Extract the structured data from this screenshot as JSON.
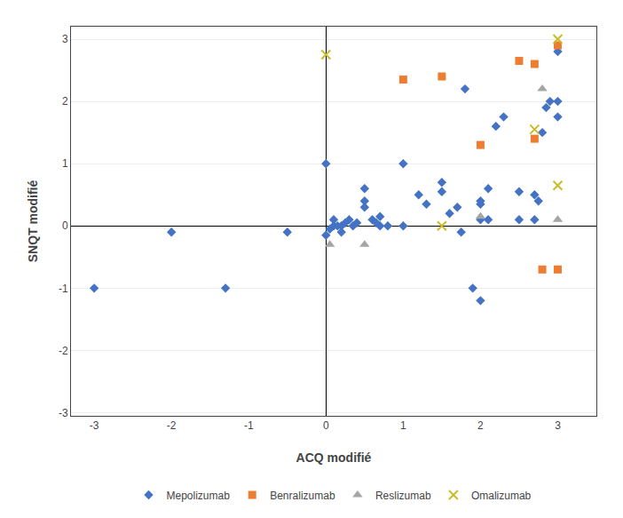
{
  "chart_data": {
    "type": "scatter",
    "xlabel": "ACQ modifié",
    "ylabel": "SNQT modifié",
    "xlim": [
      -3.3,
      3.5
    ],
    "ylim": [
      -3.05,
      3.2
    ],
    "xticks": [
      -3,
      -2,
      -1,
      0,
      1,
      2,
      3
    ],
    "yticks": [
      -3,
      -2,
      -1,
      0,
      1,
      2,
      3
    ],
    "grid": "y",
    "legend": "bottom",
    "series": [
      {
        "name": "Mepolizumab",
        "color": "#4472C4",
        "marker": "diamond",
        "x": [
          -3.0,
          -2.0,
          -1.3,
          -0.5,
          0.0,
          0.0,
          0.05,
          0.1,
          0.1,
          0.15,
          0.2,
          0.2,
          0.25,
          0.3,
          0.35,
          0.4,
          0.5,
          0.5,
          0.5,
          0.6,
          0.65,
          0.7,
          0.7,
          0.8,
          1.0,
          1.0,
          1.2,
          1.3,
          1.5,
          1.5,
          1.6,
          1.7,
          1.75,
          1.8,
          1.9,
          2.0,
          2.0,
          2.0,
          2.0,
          2.1,
          2.1,
          2.2,
          2.3,
          2.5,
          2.5,
          2.7,
          2.7,
          2.75,
          2.8,
          2.85,
          2.9,
          3.0,
          3.0,
          3.0
        ],
        "values": [
          -1.0,
          -0.1,
          -1.0,
          -0.1,
          1.0,
          -0.15,
          -0.05,
          0.0,
          0.1,
          0.0,
          0.0,
          -0.1,
          0.05,
          0.1,
          0.0,
          0.05,
          0.6,
          0.3,
          0.4,
          0.1,
          0.05,
          0.0,
          0.15,
          0.0,
          1.0,
          0.0,
          0.5,
          0.35,
          0.55,
          0.7,
          0.2,
          0.3,
          -0.1,
          2.2,
          -1.0,
          0.35,
          0.1,
          0.4,
          -1.2,
          0.6,
          0.1,
          1.6,
          1.75,
          0.55,
          0.1,
          0.1,
          0.5,
          0.4,
          1.5,
          1.9,
          2.0,
          2.8,
          1.75,
          2.0
        ]
      },
      {
        "name": "Benralizumab",
        "color": "#ED7D31",
        "marker": "square",
        "x": [
          1.0,
          1.5,
          2.0,
          2.5,
          2.7,
          3.0,
          3.0,
          2.7,
          2.8
        ],
        "values": [
          2.35,
          2.4,
          1.3,
          2.65,
          2.6,
          2.9,
          -0.7,
          1.4,
          -0.7
        ]
      },
      {
        "name": "Reslizumab",
        "color": "#A5A5A5",
        "marker": "triangle",
        "x": [
          0.05,
          0.5,
          2.0,
          3.0,
          2.8
        ],
        "values": [
          -0.3,
          -0.3,
          0.15,
          0.1,
          2.2
        ]
      },
      {
        "name": "Omalizumab",
        "color": "#C9BC27",
        "marker": "x",
        "x": [
          0.0,
          1.5,
          2.7,
          3.0,
          3.0
        ],
        "values": [
          2.75,
          0.0,
          1.55,
          0.65,
          3.0
        ]
      }
    ]
  }
}
